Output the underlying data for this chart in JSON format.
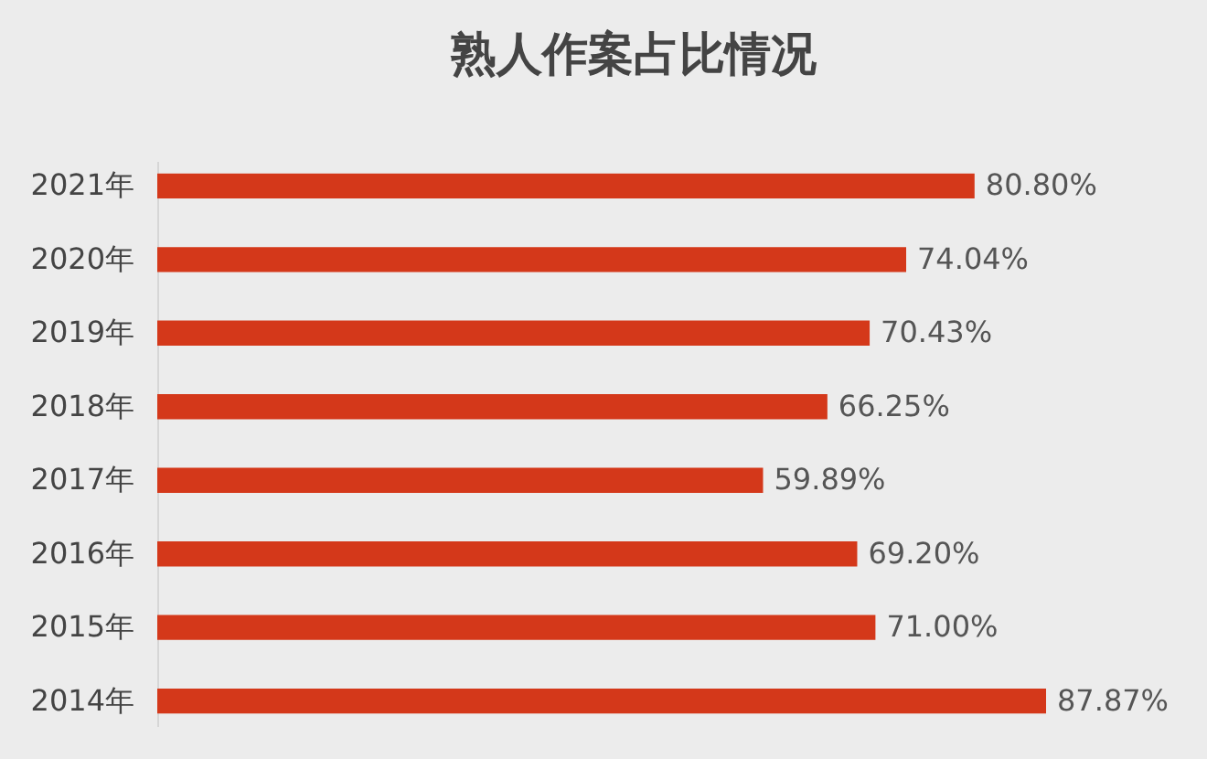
{
  "chart_data": {
    "type": "bar",
    "orientation": "horizontal",
    "title": "熟人作案占比情况",
    "categories": [
      "2021年",
      "2020年",
      "2019年",
      "2018年",
      "2017年",
      "2016年",
      "2015年",
      "2014年"
    ],
    "values": [
      80.8,
      74.04,
      70.43,
      66.25,
      59.89,
      69.2,
      71.0,
      87.87
    ],
    "value_labels": [
      "80.80%",
      "74.04%",
      "70.43%",
      "66.25%",
      "59.89%",
      "69.20%",
      "71.00%",
      "87.87%"
    ],
    "color": "#d4381a",
    "tick_labels": "y"
  }
}
